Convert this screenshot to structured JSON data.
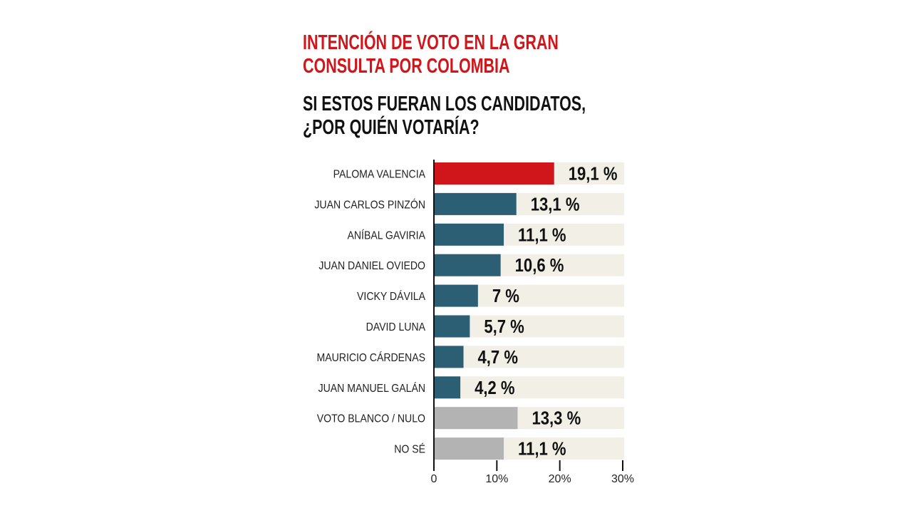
{
  "chart_data": {
    "type": "bar",
    "orientation": "horizontal",
    "title": "INTENCIÓN DE VOTO EN LA GRAN CONSULTA POR COLOMBIA",
    "title_lines": [
      "INTENCIÓN DE VOTO EN LA GRAN",
      "CONSULTA POR COLOMBIA"
    ],
    "subtitle_lines": [
      "SI ESTOS FUERAN LOS CANDIDATOS,",
      "¿POR QUIÉN VOTARÍA?"
    ],
    "categories": [
      "PALOMA VALENCIA",
      "JUAN CARLOS PINZÓN",
      "ANÍBAL GAVIRIA",
      "JUAN DANIEL OVIEDO",
      "VICKY DÁVILA",
      "DAVID LUNA",
      "MAURICIO CÁRDENAS",
      "JUAN MANUEL GALÁN",
      "VOTO BLANCO / NULO",
      "NO SÉ"
    ],
    "values": [
      19.1,
      13.1,
      11.1,
      10.6,
      7,
      5.7,
      4.7,
      4.2,
      13.3,
      11.1
    ],
    "value_labels": [
      "19,1 %",
      "13,1 %",
      "11,1 %",
      "10,6 %",
      "7 %",
      "5,7 %",
      "4,7 %",
      "4,2 %",
      "13,3 %",
      "11,1 %"
    ],
    "bar_colors": [
      "#d0151b",
      "#2c5f74",
      "#2c5f74",
      "#2c5f74",
      "#2c5f74",
      "#2c5f74",
      "#2c5f74",
      "#2c5f74",
      "#b3b3b3",
      "#b3b3b3"
    ],
    "track_color": "#f2efe6",
    "xlim": [
      0,
      30
    ],
    "x_ticks": [
      0,
      10,
      20,
      30
    ],
    "x_tick_labels": [
      "0",
      "10%",
      "20%",
      "30%"
    ],
    "grid": false
  }
}
